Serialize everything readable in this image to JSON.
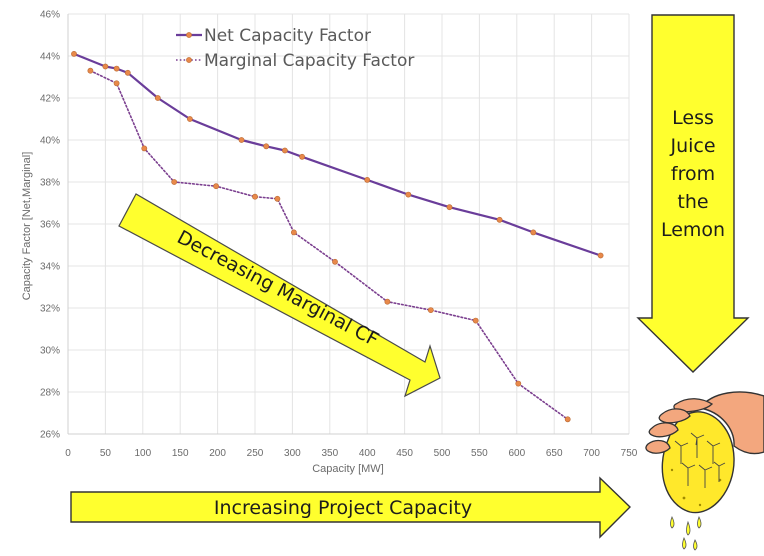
{
  "chart_data": {
    "type": "line",
    "xlabel": "Capacity [MW]",
    "ylabel": "Capacity Factor [Net,Marginal]",
    "xlim": [
      0,
      750
    ],
    "ylim": [
      26,
      46
    ],
    "x_ticks": [
      "0",
      "50",
      "100",
      "150",
      "200",
      "250",
      "300",
      "350",
      "400",
      "450",
      "500",
      "550",
      "600",
      "650",
      "700",
      "750"
    ],
    "y_ticks": [
      "26%",
      "28%",
      "30%",
      "32%",
      "34%",
      "36%",
      "38%",
      "40%",
      "42%",
      "44%",
      "46%"
    ],
    "grid": true,
    "legend_position": "top-left",
    "series": [
      {
        "name": "Net Capacity Factor",
        "style": "solid",
        "color": "#6a3d9a",
        "x": [
          8,
          50,
          65,
          80,
          120,
          163,
          232,
          265,
          290,
          313,
          400,
          455,
          510,
          577,
          622,
          712
        ],
        "y": [
          44.1,
          43.5,
          43.4,
          43.2,
          42.0,
          41.0,
          40.0,
          39.7,
          39.5,
          39.2,
          38.1,
          37.4,
          36.8,
          36.2,
          35.6,
          34.5
        ]
      },
      {
        "name": "Marginal Capacity Factor",
        "style": "dotted",
        "color": "#7b3f8f",
        "x": [
          30,
          65,
          102,
          142,
          198,
          250,
          280,
          302,
          357,
          427,
          485,
          545,
          602,
          668
        ],
        "y": [
          43.3,
          42.7,
          39.6,
          38.0,
          37.8,
          37.3,
          37.2,
          35.6,
          34.2,
          32.3,
          31.9,
          31.4,
          28.4,
          26.7
        ]
      }
    ],
    "annotations": {
      "diagonal_arrow": "Decreasing Marginal CF",
      "vertical_arrow": [
        "Less",
        "Juice",
        "from",
        "the",
        "Lemon"
      ],
      "bottom_arrow": "Increasing Project Capacity"
    },
    "marker_color": "#e8894a",
    "arrow_fill": "#ffff2e"
  }
}
